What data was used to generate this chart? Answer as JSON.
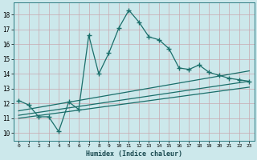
{
  "xlabel": "Humidex (Indice chaleur)",
  "background_color": "#cce8eb",
  "grid_color": "#b8d8dc",
  "line_color": "#1a6e6a",
  "xlim": [
    -0.5,
    23.5
  ],
  "ylim": [
    9.5,
    18.8
  ],
  "xticks": [
    0,
    1,
    2,
    3,
    4,
    5,
    6,
    7,
    8,
    9,
    10,
    11,
    12,
    13,
    14,
    15,
    16,
    17,
    18,
    19,
    20,
    21,
    22,
    23
  ],
  "yticks": [
    10,
    11,
    12,
    13,
    14,
    15,
    16,
    17,
    18
  ],
  "main_x": [
    0,
    1,
    2,
    3,
    4,
    5,
    6,
    7,
    8,
    9,
    10,
    11,
    12,
    13,
    14,
    15,
    16,
    17,
    18,
    19,
    20,
    21,
    22,
    23
  ],
  "main_y": [
    12.2,
    11.9,
    11.1,
    11.1,
    10.1,
    12.1,
    11.6,
    16.6,
    14.0,
    15.4,
    17.1,
    18.3,
    17.5,
    16.5,
    16.3,
    15.7,
    14.4,
    14.3,
    14.6,
    14.1,
    13.9,
    13.7,
    13.6,
    13.5
  ],
  "line1_x": [
    0,
    23
  ],
  "line1_y": [
    11.5,
    14.2
  ],
  "line2_x": [
    0,
    23
  ],
  "line2_y": [
    11.2,
    13.5
  ],
  "line3_x": [
    0,
    23
  ],
  "line3_y": [
    11.0,
    13.1
  ]
}
